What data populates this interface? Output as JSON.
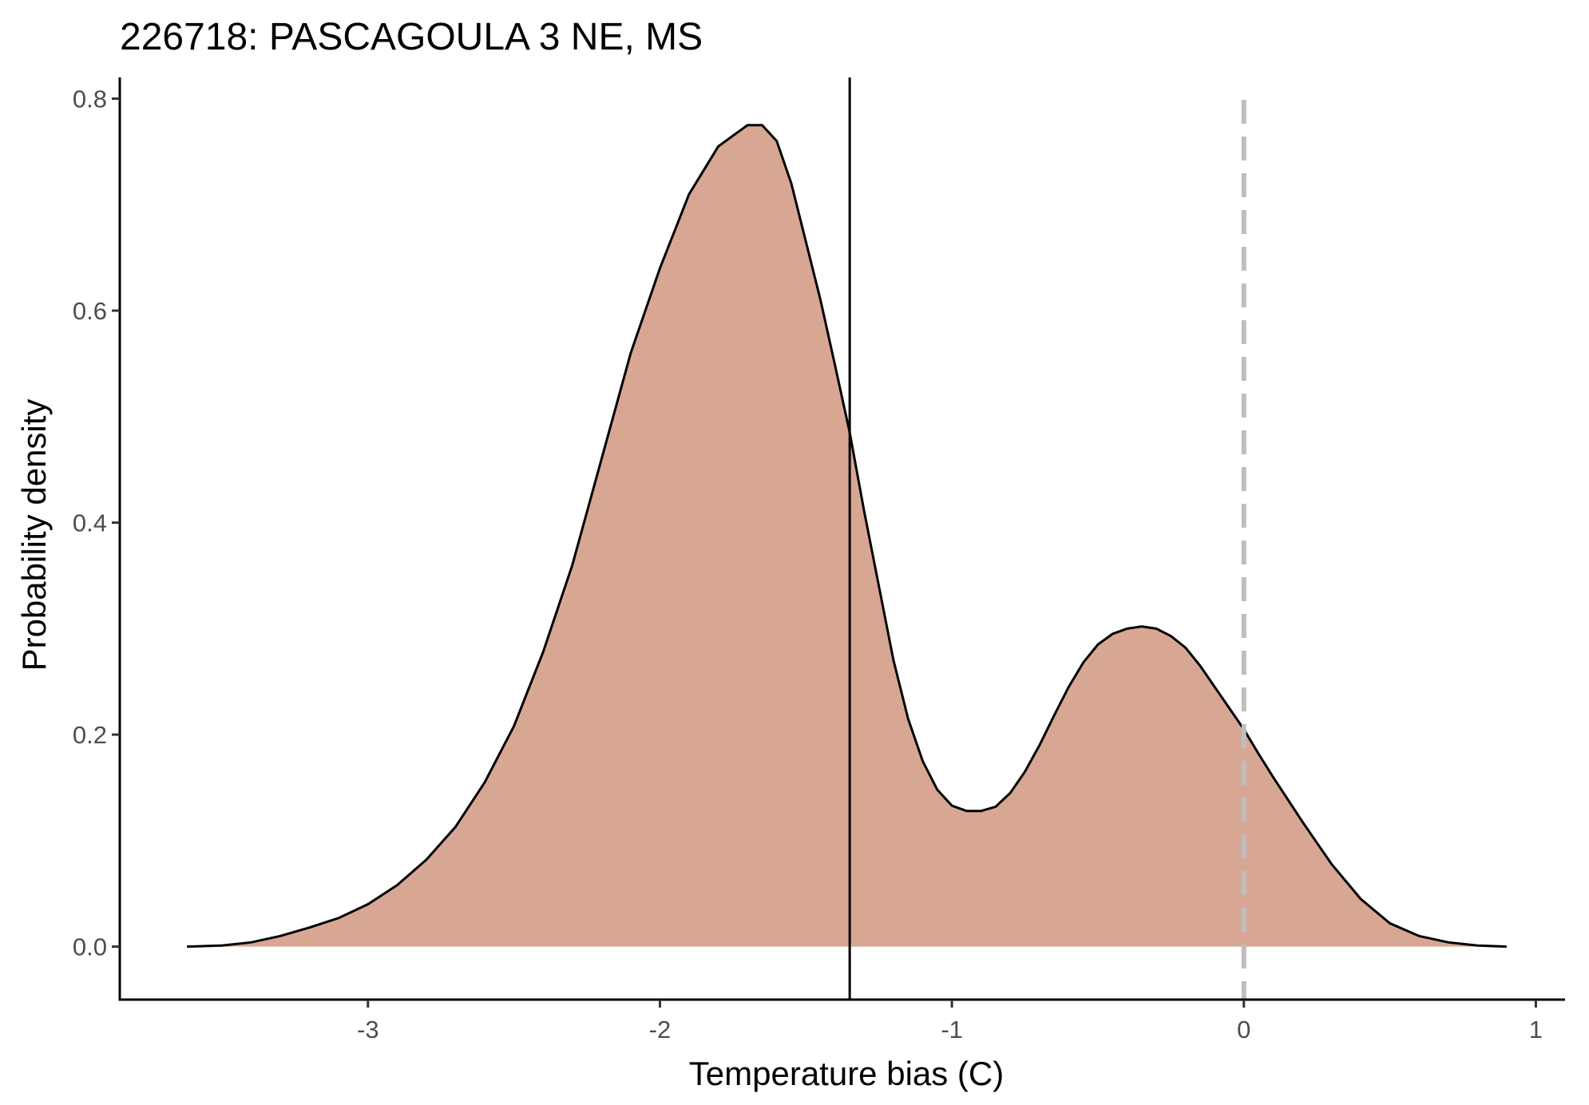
{
  "chart_data": {
    "type": "area",
    "title": "226718: PASCAGOULA 3 NE, MS",
    "xlabel": "Temperature bias (C)",
    "ylabel": "Probability density",
    "xlim": [
      -3.85,
      1.1
    ],
    "ylim": [
      -0.05,
      0.82
    ],
    "xticks": [
      -3,
      -2,
      -1,
      0,
      1
    ],
    "xtick_labels": [
      "-3",
      "-2",
      "-1",
      "0",
      "1"
    ],
    "yticks": [
      0.0,
      0.2,
      0.4,
      0.6,
      0.8
    ],
    "ytick_labels": [
      "0.0",
      "0.2",
      "0.4",
      "0.6",
      "0.8"
    ],
    "grid": false,
    "fill_color": "#d8a794",
    "line_color": "#000000",
    "x": [
      -3.62,
      -3.5,
      -3.4,
      -3.3,
      -3.2,
      -3.1,
      -3.0,
      -2.9,
      -2.8,
      -2.7,
      -2.6,
      -2.5,
      -2.4,
      -2.3,
      -2.2,
      -2.1,
      -2.0,
      -1.9,
      -1.8,
      -1.7,
      -1.65,
      -1.6,
      -1.55,
      -1.5,
      -1.45,
      -1.4,
      -1.35,
      -1.3,
      -1.25,
      -1.2,
      -1.15,
      -1.1,
      -1.05,
      -1.0,
      -0.95,
      -0.9,
      -0.85,
      -0.8,
      -0.75,
      -0.7,
      -0.65,
      -0.6,
      -0.55,
      -0.5,
      -0.45,
      -0.4,
      -0.35,
      -0.3,
      -0.25,
      -0.2,
      -0.15,
      -0.1,
      -0.05,
      0.0,
      0.05,
      0.1,
      0.2,
      0.3,
      0.4,
      0.5,
      0.6,
      0.7,
      0.8,
      0.9
    ],
    "y": [
      0.0,
      0.001,
      0.004,
      0.01,
      0.018,
      0.027,
      0.04,
      0.058,
      0.082,
      0.113,
      0.155,
      0.208,
      0.278,
      0.36,
      0.46,
      0.56,
      0.64,
      0.71,
      0.755,
      0.775,
      0.775,
      0.76,
      0.72,
      0.665,
      0.61,
      0.548,
      0.485,
      0.41,
      0.34,
      0.27,
      0.215,
      0.175,
      0.148,
      0.133,
      0.128,
      0.128,
      0.132,
      0.145,
      0.165,
      0.19,
      0.218,
      0.245,
      0.268,
      0.285,
      0.295,
      0.3,
      0.302,
      0.3,
      0.293,
      0.282,
      0.265,
      0.245,
      0.225,
      0.205,
      0.182,
      0.16,
      0.118,
      0.078,
      0.045,
      0.022,
      0.01,
      0.004,
      0.001,
      0.0
    ],
    "vlines": [
      {
        "x": -1.35,
        "style": "solid",
        "color": "#000000"
      },
      {
        "x": 0.0,
        "style": "dashed",
        "color": "#bebebe"
      }
    ]
  }
}
